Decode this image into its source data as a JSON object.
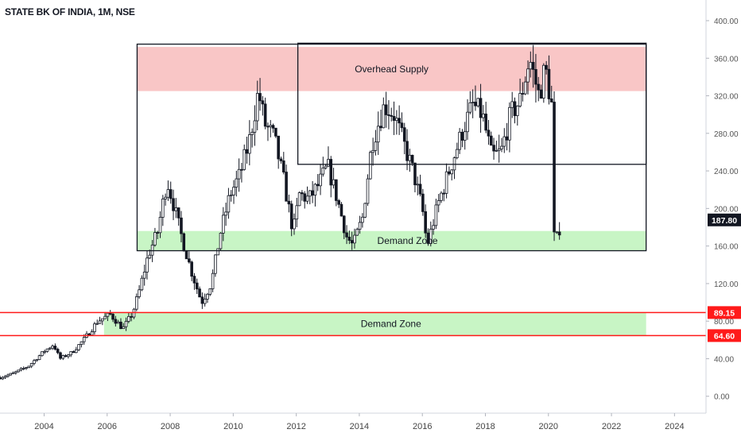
{
  "header": {
    "title": "STATE BK OF INDIA, 1M, NSE"
  },
  "colors": {
    "candle": "#131722",
    "supply_zone": "#f9c6c6",
    "demand_zone": "#c8f5c5",
    "support_line": "#ff1a1a",
    "price_label_bg": "#131722",
    "support_label_bg": "#ff1a1a"
  },
  "chart_data": {
    "type": "candlestick",
    "title": "STATE BK OF INDIA, 1M, NSE",
    "xlabel": "",
    "ylabel": "",
    "x_ticks": [
      "2004",
      "2006",
      "2008",
      "2010",
      "2012",
      "2014",
      "2016",
      "2018",
      "2020",
      "2022",
      "2024"
    ],
    "y_ticks": [
      "0.00",
      "40.00",
      "80.00",
      "120.00",
      "160.00",
      "200.00",
      "240.00",
      "280.00",
      "320.00",
      "360.00",
      "400.00"
    ],
    "xlim": [
      2002.6,
      2025.0
    ],
    "ylim": [
      -18,
      422
    ],
    "grid": false,
    "current_price": {
      "value": 187.8,
      "label": "187.80"
    },
    "support_lines": [
      {
        "value": 89.15,
        "label": "89.15"
      },
      {
        "value": 64.6,
        "label": "64.60"
      }
    ],
    "zones": [
      {
        "label": "Overhead Supply",
        "type": "supply",
        "x_start": 2006.95,
        "x_end": 2023.1,
        "y_low": 325,
        "y_high": 372
      },
      {
        "label": "Demand Zone",
        "type": "demand",
        "x_start": 2006.95,
        "x_end": 2023.1,
        "y_low": 155,
        "y_high": 176
      },
      {
        "label": "Demand Zone",
        "type": "demand",
        "x_start": 2005.9,
        "x_end": 2023.1,
        "y_low": 65,
        "y_high": 89
      }
    ],
    "boxes": [
      {
        "x_start": 2006.95,
        "x_end": 2023.1,
        "y_low": 155,
        "y_high": 375
      },
      {
        "x_start": 2012.05,
        "x_end": 2023.1,
        "y_low": 247,
        "y_high": 376
      }
    ],
    "path_points": [
      [
        2002.6,
        20
      ],
      [
        2003.0,
        24
      ],
      [
        2003.5,
        32
      ],
      [
        2004.0,
        48
      ],
      [
        2004.3,
        55
      ],
      [
        2004.5,
        40
      ],
      [
        2004.9,
        47
      ],
      [
        2005.3,
        62
      ],
      [
        2005.7,
        80
      ],
      [
        2006.1,
        87
      ],
      [
        2006.5,
        72
      ],
      [
        2006.8,
        88
      ],
      [
        2007.0,
        110
      ],
      [
        2007.3,
        150
      ],
      [
        2007.6,
        175
      ],
      [
        2007.9,
        230
      ],
      [
        2008.1,
        205
      ],
      [
        2008.4,
        165
      ],
      [
        2008.7,
        130
      ],
      [
        2009.0,
        100
      ],
      [
        2009.3,
        120
      ],
      [
        2009.6,
        175
      ],
      [
        2009.9,
        215
      ],
      [
        2010.2,
        235
      ],
      [
        2010.5,
        270
      ],
      [
        2010.8,
        325
      ],
      [
        2011.0,
        290
      ],
      [
        2011.3,
        275
      ],
      [
        2011.6,
        230
      ],
      [
        2011.9,
        175
      ],
      [
        2012.1,
        215
      ],
      [
        2012.4,
        210
      ],
      [
        2012.7,
        225
      ],
      [
        2013.0,
        245
      ],
      [
        2013.3,
        210
      ],
      [
        2013.6,
        170
      ],
      [
        2013.8,
        160
      ],
      [
        2014.1,
        190
      ],
      [
        2014.4,
        270
      ],
      [
        2014.8,
        310
      ],
      [
        2015.1,
        300
      ],
      [
        2015.4,
        270
      ],
      [
        2015.7,
        240
      ],
      [
        2016.0,
        200
      ],
      [
        2016.15,
        160
      ],
      [
        2016.5,
        205
      ],
      [
        2016.9,
        245
      ],
      [
        2017.3,
        285
      ],
      [
        2017.6,
        310
      ],
      [
        2017.9,
        300
      ],
      [
        2018.2,
        255
      ],
      [
        2018.5,
        260
      ],
      [
        2018.8,
        300
      ],
      [
        2019.1,
        315
      ],
      [
        2019.4,
        360
      ],
      [
        2019.7,
        320
      ],
      [
        2019.9,
        350
      ],
      [
        2020.1,
        310
      ],
      [
        2020.2,
        190
      ],
      [
        2020.4,
        175
      ]
    ]
  }
}
